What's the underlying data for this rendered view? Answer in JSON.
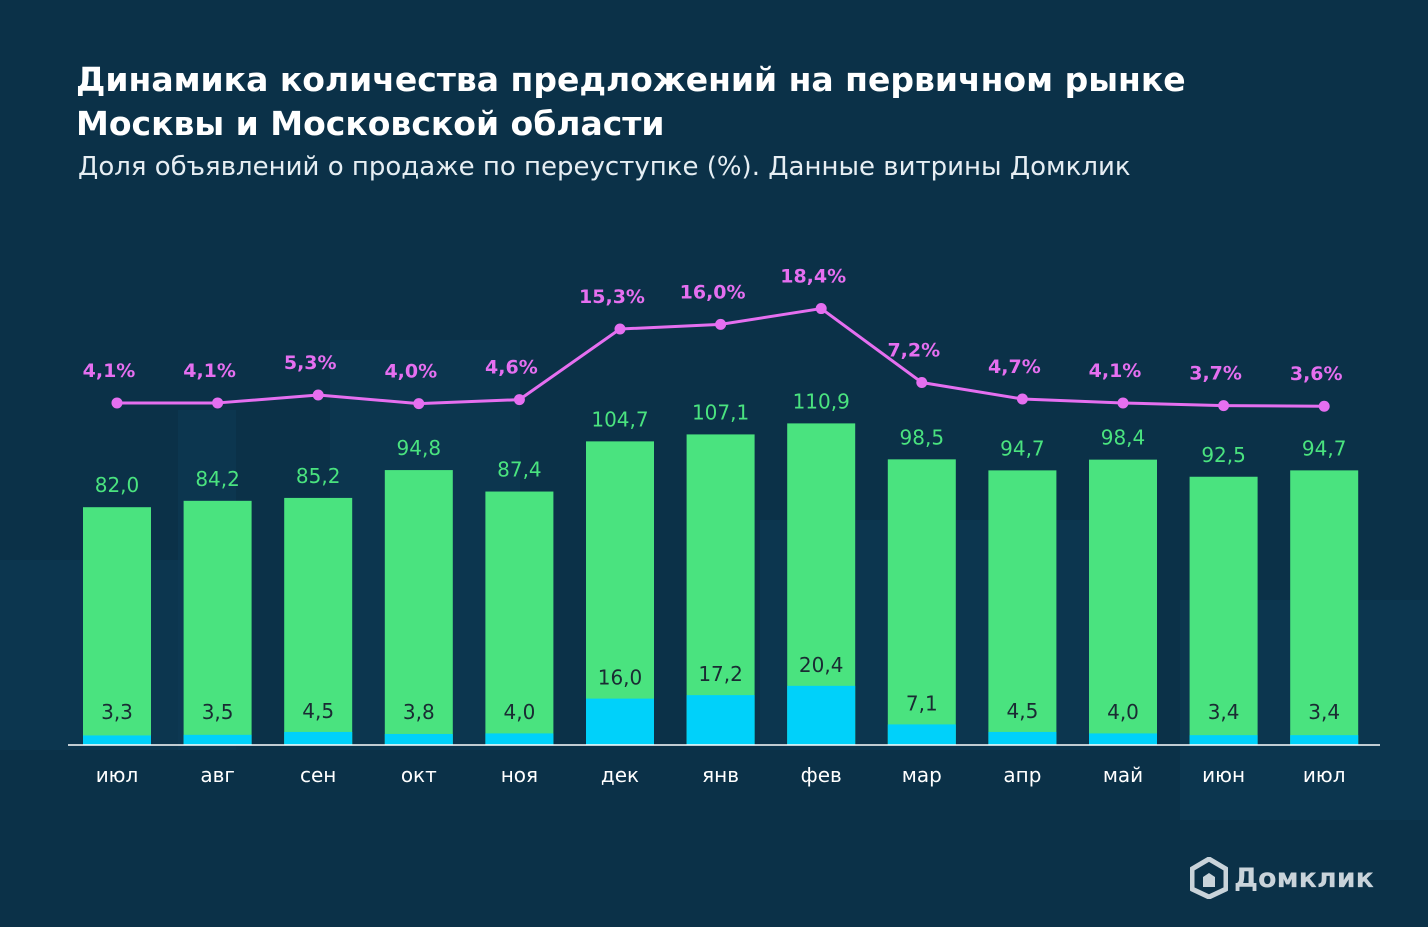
{
  "title_line1": "Динамика количества предложений на первичном рынке",
  "title_line2": "Москвы и Московской области",
  "subtitle": "Доля объявлений о продаже по переуступке (%). Данные витрины Домклик",
  "logo_text": "Домклик",
  "colors": {
    "background": "#0b3148",
    "total_bar": "#4ae37f",
    "resale_bar": "#00d1fa",
    "share_line": "#e56ff0",
    "total_label": "#4ae37f",
    "resale_label": "#1a2b33",
    "share_label": "#e56ff0",
    "axis_label": "#ffffff"
  },
  "chart_data": {
    "type": "bar",
    "categories": [
      "июл",
      "авг",
      "сен",
      "окт",
      "ноя",
      "дек",
      "янв",
      "фев",
      "мар",
      "апр",
      "май",
      "июн",
      "июл"
    ],
    "series": [
      {
        "values": [
          82.0,
          84.2,
          85.2,
          94.8,
          87.4,
          104.7,
          107.1,
          110.9,
          98.5,
          94.7,
          98.4,
          92.5,
          94.7
        ],
        "labels": [
          "82,0",
          "84,2",
          "85,2",
          "94,8",
          "87,4",
          "104,7",
          "107,1",
          "110,9",
          "98,5",
          "94,7",
          "98,4",
          "92,5",
          "94,7"
        ]
      },
      {
        "values": [
          3.3,
          3.5,
          4.5,
          3.8,
          4.0,
          16.0,
          17.2,
          20.4,
          7.1,
          4.5,
          4.0,
          3.4,
          3.4
        ],
        "labels": [
          "3,3",
          "3,5",
          "4,5",
          "3,8",
          "4,0",
          "16,0",
          "17,2",
          "20,4",
          "7,1",
          "4,5",
          "4,0",
          "3,4",
          "3,4"
        ]
      },
      {
        "type": "line",
        "values": [
          4.1,
          4.1,
          5.3,
          4.0,
          4.6,
          15.3,
          16.0,
          18.4,
          7.2,
          4.7,
          4.1,
          3.7,
          3.6
        ],
        "labels": [
          "4,1%",
          "4,1%",
          "5,3%",
          "4,0%",
          "4,6%",
          "15,3%",
          "16,0%",
          "18,4%",
          "7,2%",
          "4,7%",
          "4,1%",
          "3,7%",
          "3,6%"
        ]
      }
    ]
  }
}
